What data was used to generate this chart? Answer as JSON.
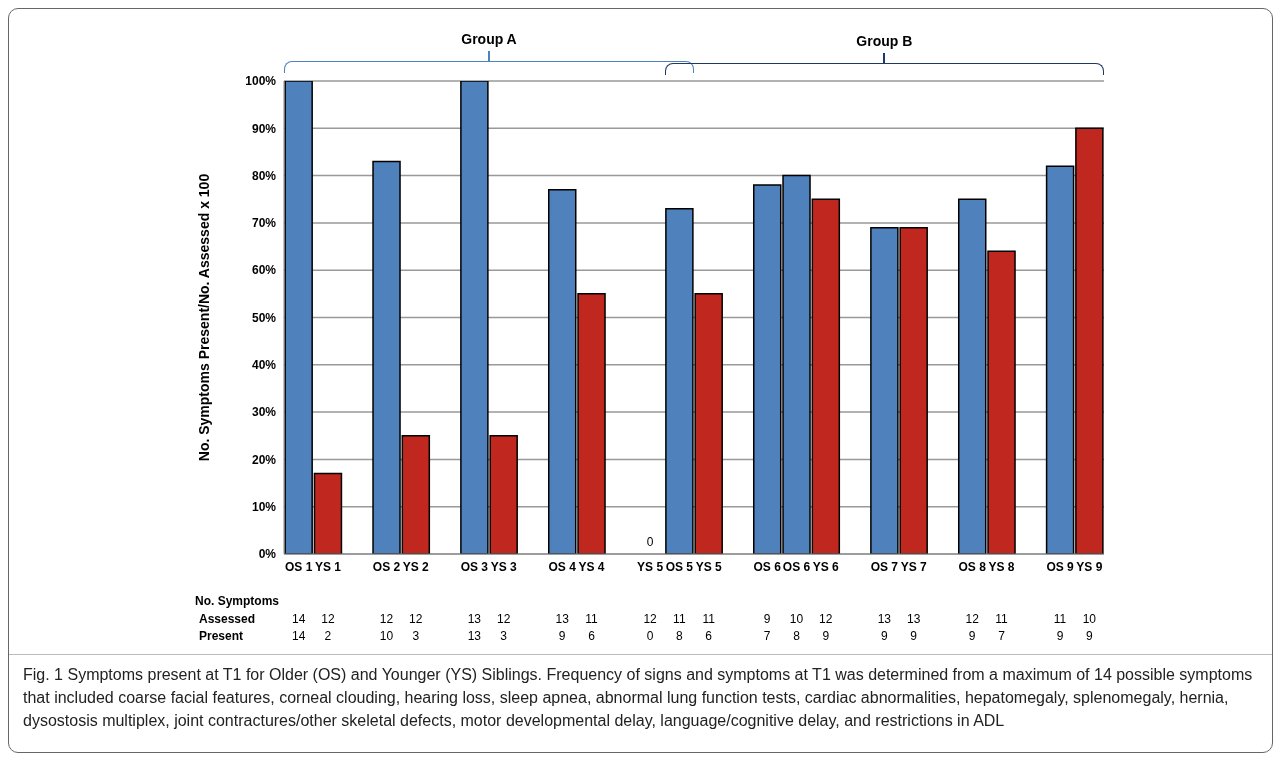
{
  "chart_data": {
    "type": "bar",
    "ylabel": "No. Symptoms Present/No. Assessed x 100",
    "categories": [
      "OS 1",
      "YS 1",
      null,
      "OS 2",
      "YS 2",
      null,
      "OS 3",
      "YS 3",
      null,
      "OS 4",
      "YS 4",
      null,
      "YS 5",
      "OS 5",
      "YS 5",
      null,
      "OS 6",
      "OS 6",
      "YS 6",
      null,
      "OS 7",
      "YS 7",
      null,
      "OS 8",
      "YS 8",
      null,
      "OS 9",
      "YS 9"
    ],
    "values": [
      100,
      17,
      null,
      83,
      25,
      null,
      100,
      25,
      null,
      77,
      55,
      null,
      0,
      73,
      55,
      null,
      78,
      80,
      75,
      null,
      69,
      69,
      null,
      75,
      64,
      null,
      82,
      90
    ],
    "colors": [
      "#4f81bd",
      "#c0281f",
      "#ffffff",
      "#4f81bd",
      "#c0281f",
      "#ffffff",
      "#4f81bd",
      "#c0281f",
      "#ffffff",
      "#4f81bd",
      "#c0281f",
      "#ffffff",
      "#c0281f",
      "#4f81bd",
      "#c0281f",
      "#ffffff",
      "#4f81bd",
      "#4f81bd",
      "#c0281f",
      "#ffffff",
      "#4f81bd",
      "#c0281f",
      "#ffffff",
      "#4f81bd",
      "#c0281f",
      "#ffffff",
      "#4f81bd",
      "#c0281f"
    ],
    "value_labels": [
      null,
      null,
      null,
      null,
      null,
      null,
      null,
      null,
      null,
      null,
      null,
      null,
      "0",
      null,
      null,
      null,
      null,
      null,
      null,
      null,
      null,
      null,
      null,
      null,
      null,
      null,
      null,
      null
    ],
    "ylim": [
      0,
      100
    ],
    "yticks": [
      {
        "value": 0,
        "label": "0%"
      },
      {
        "value": 10,
        "label": "10%"
      },
      {
        "value": 20,
        "label": "20%"
      },
      {
        "value": 30,
        "label": "30%"
      },
      {
        "value": 40,
        "label": "40%"
      },
      {
        "value": 50,
        "label": "50%"
      },
      {
        "value": 60,
        "label": "60%"
      },
      {
        "value": 70,
        "label": "70%"
      },
      {
        "value": 80,
        "label": "80%"
      },
      {
        "value": 90,
        "label": "90%"
      },
      {
        "value": 100,
        "label": "100%"
      }
    ],
    "grid": "y",
    "annotations": [
      "Group A",
      "Group B",
      "No. Symptoms",
      "Assessed",
      "Present",
      "Fig. 1 Symptoms present at T1 for Older (OS) and Younger (YS) Siblings. Frequency of signs and symptoms at T1 was determined from a maximum of 14 possible symptoms that included coarse facial features, corneal clouding, hearing loss, sleep apnea, abnormal lung function tests, cardiac abnormalities, hepatomegaly, splenomegaly, hernia, dysostosis multiplex, joint contractures/other skeletal defects, motor developmental delay, language/cognitive delay, and restrictions in ADL",
      "14",
      "12",
      "12",
      "12",
      "13",
      "12",
      "13",
      "11",
      "12",
      "11",
      "11",
      "9",
      "10",
      "12",
      "13",
      "13",
      "12",
      "11",
      "11",
      "10",
      "14",
      "2",
      "10",
      "3",
      "13",
      "3",
      "9",
      "6",
      "0",
      "8",
      "6",
      "7",
      "8",
      "9",
      "9",
      "9",
      "9",
      "7",
      "9",
      "9"
    ]
  }
}
